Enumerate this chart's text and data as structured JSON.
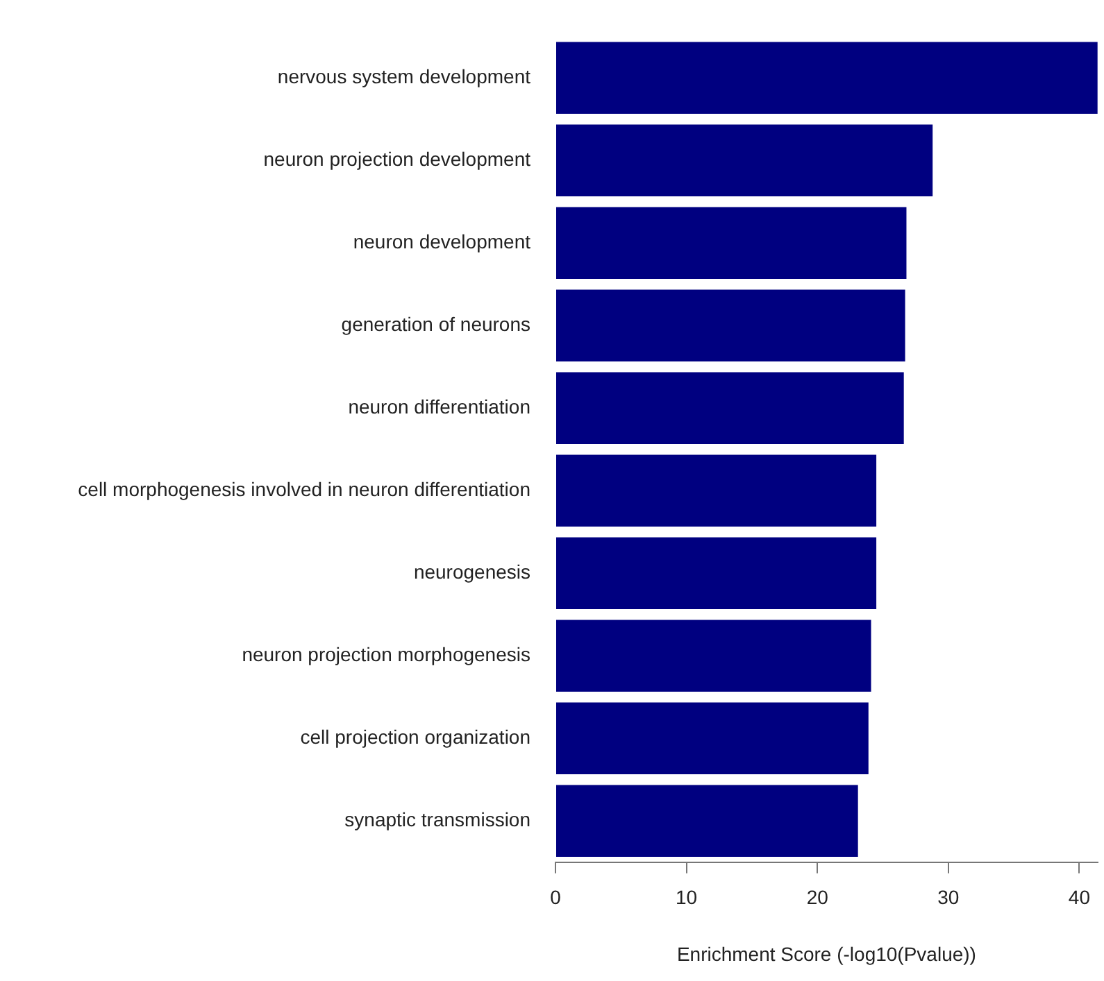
{
  "chart_data": {
    "type": "bar",
    "orientation": "horizontal",
    "xlabel": "Enrichment Score (-log10(Pvalue))",
    "categories": [
      "nervous system development",
      "neuron projection development",
      "neuron development",
      "generation of neurons",
      "neuron differentiation",
      "cell morphogenesis involved in neuron differentiation",
      "neurogenesis",
      "neuron projection morphogenesis",
      "cell projection organization",
      "synaptic transmission"
    ],
    "values": [
      41.4,
      28.8,
      26.8,
      26.7,
      26.6,
      24.5,
      24.5,
      24.1,
      23.9,
      23.1
    ],
    "color": "#000080",
    "xlim": [
      0,
      41.4
    ],
    "xticks": [
      0,
      10,
      20,
      30,
      40
    ],
    "grid": false,
    "legend": false
  }
}
